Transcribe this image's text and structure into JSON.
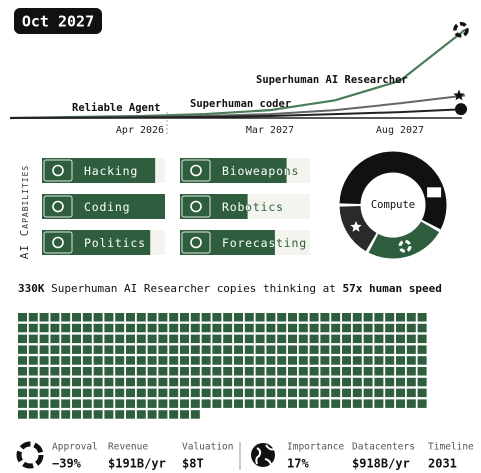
{
  "date": "Oct 2027",
  "chart_data": {
    "type": "line",
    "categories": [
      null,
      null,
      "Apr 2026",
      null,
      "Mar 2027",
      null,
      "Aug 2027",
      null
    ],
    "ylim": [
      0,
      100
    ],
    "series": [
      {
        "color": "#4a7c59",
        "values": [
          0,
          1,
          2,
          4,
          8,
          18,
          38,
          90
        ]
      },
      {
        "color": "#666666",
        "values": [
          0,
          0.5,
          1,
          2,
          4,
          8,
          15,
          23
        ]
      },
      {
        "color": "#222222",
        "values": [
          0,
          0.3,
          0.6,
          1,
          2,
          4,
          6,
          9
        ]
      }
    ],
    "annotations": [
      "Reliable Agent",
      "Superhuman coder",
      "Superhuman AI Researcher"
    ]
  },
  "capabilities": {
    "title": "AI Capabilities",
    "xlim": [
      0,
      100
    ],
    "items": [
      {
        "name": "Hacking",
        "value": 92
      },
      {
        "name": "Coding",
        "value": 100
      },
      {
        "name": "Politics",
        "value": 88
      },
      {
        "name": "Bioweapons",
        "value": 82
      },
      {
        "name": "Robotics",
        "value": 52
      },
      {
        "name": "Forecasting",
        "value": 73
      }
    ]
  },
  "compute": {
    "type": "donut",
    "label": "Compute",
    "values": [
      58,
      25,
      17
    ],
    "colors": [
      "#111111",
      "#2f5e3e",
      "#2a2a2a"
    ]
  },
  "copies": {
    "count": "330K",
    "text": "Superhuman AI Researcher copies thinking at",
    "speed": "57x",
    "speed_text": "human speed",
    "icons": 359,
    "color": "#2f5e3e"
  },
  "stats": [
    {
      "label": "Approval",
      "value": "−39%"
    },
    {
      "label": "Revenue",
      "value": "$191B/yr"
    },
    {
      "label": "Valuation",
      "value": "$8T"
    },
    {
      "label": "Importance",
      "value": "17%"
    },
    {
      "label": "Datacenters",
      "value": "$918B/yr"
    },
    {
      "label": "Timeline",
      "value": "2031"
    }
  ]
}
